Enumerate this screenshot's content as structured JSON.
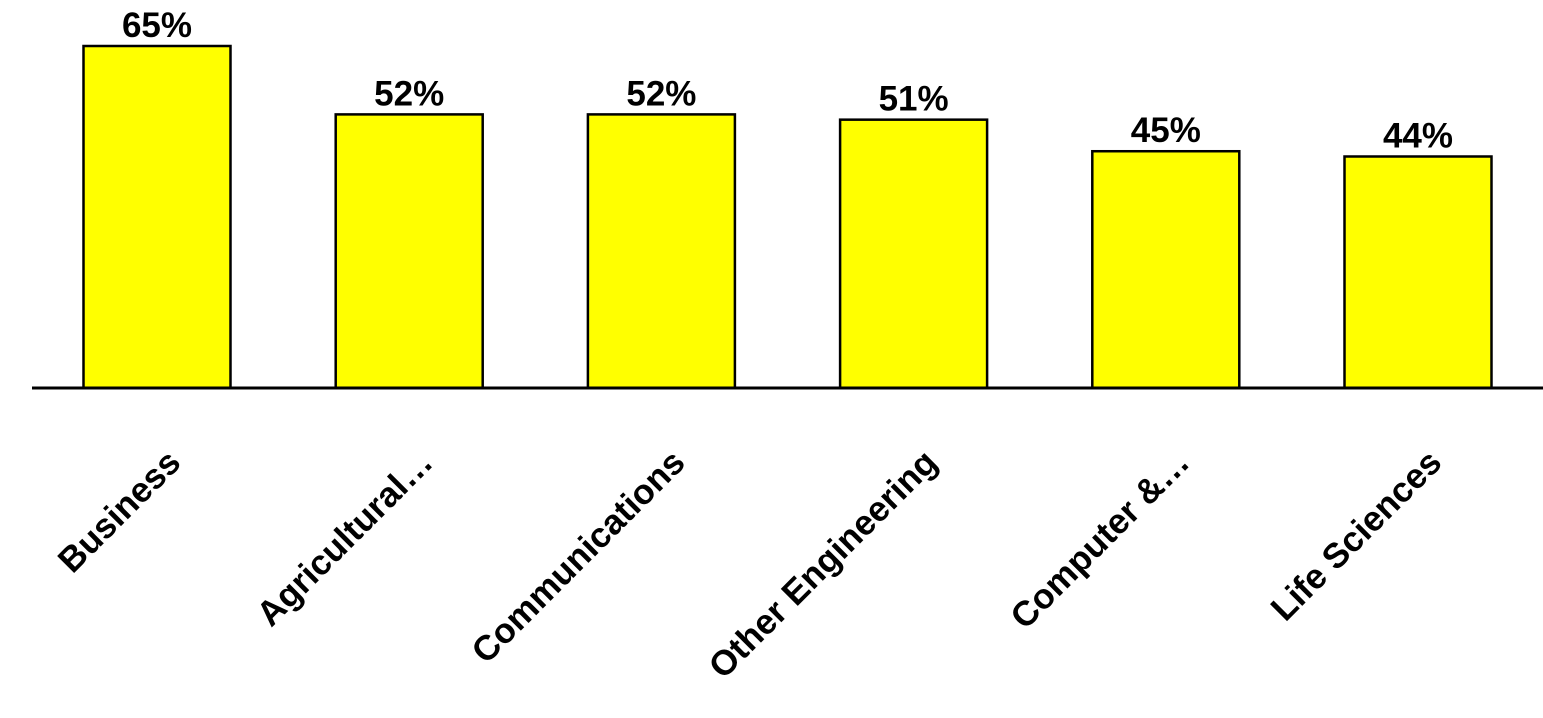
{
  "chart_data": {
    "type": "bar",
    "categories": [
      "Business",
      "Agricultural…",
      "Communications",
      "Other Engineering",
      "Computer &…",
      "Life Sciences"
    ],
    "values": [
      65,
      52,
      52,
      51,
      45,
      44
    ],
    "data_labels": [
      "65%",
      "52%",
      "52%",
      "51%",
      "45%",
      "44%"
    ],
    "ylim": [
      0,
      65
    ],
    "grid": false,
    "legend": "none",
    "colors": {
      "bar_fill": "#FFFF00",
      "bar_stroke": "#000000",
      "axis": "#000000"
    }
  }
}
